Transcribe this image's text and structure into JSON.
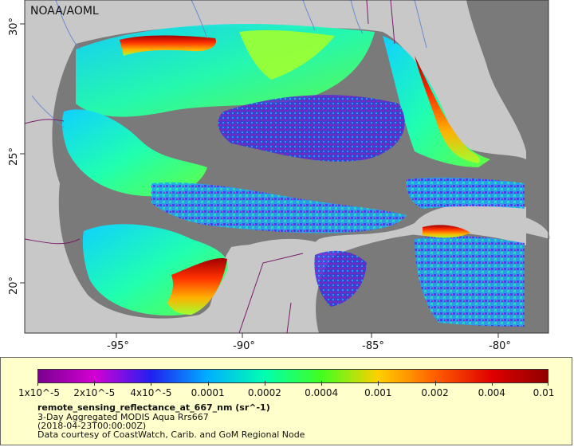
{
  "header": {
    "credit_label": "NOAA/AOML"
  },
  "map": {
    "longitude_labels": [
      "-95°",
      "-90°",
      "-85°",
      "-80°"
    ],
    "latitude_labels": [
      "30°",
      "25°",
      "20°"
    ],
    "colors": {
      "land": "#c8c8c8",
      "no_data_ocean": "#7a7a7a",
      "boundaries": "#7a1a6a",
      "rivers": "#6a8ad0",
      "panel_background": "#ffffcc"
    }
  },
  "legend": {
    "colorbar_ticks": [
      "1x10^-5",
      "2x10^-5",
      "4x10^-5",
      "0.0001",
      "0.0002",
      "0.0004",
      "0.001",
      "0.002",
      "0.004",
      "0.01"
    ],
    "colorbar_colors": [
      "#7a0090",
      "#d400d4",
      "#2020f0",
      "#00b0ff",
      "#00ffb0",
      "#40ff20",
      "#ffd000",
      "#ff6000",
      "#e00000",
      "#900000"
    ],
    "variable_name": "remote_sensing_reflectance_at_667_nm (sr^-1)",
    "product": "3-Day Aggregated MODIS Aqua Rrs667",
    "time": "(2018-04-23T00:00:00Z)",
    "attribution": "Data courtesy of CoastWatch, Carib. and GoM Regional Node"
  }
}
